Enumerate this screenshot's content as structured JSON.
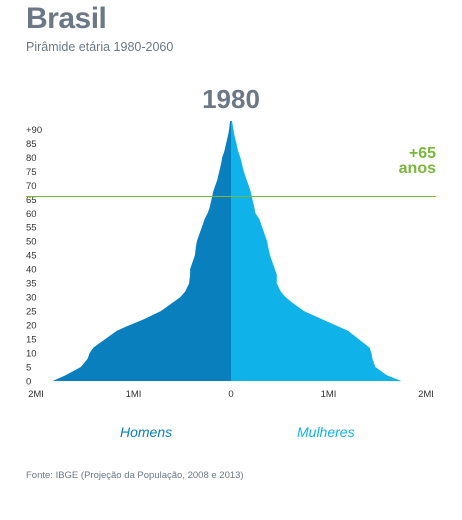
{
  "header": {
    "title": "Brasil",
    "subtitle": "Pirâmide etária 1980-2060"
  },
  "chart_data": {
    "type": "area",
    "title": "1980",
    "orientation": "horizontal-pyramid",
    "y_tick_labels": [
      "+90",
      "85",
      "80",
      "75",
      "70",
      "65",
      "60",
      "55",
      "50",
      "45",
      "40",
      "35",
      "30",
      "25",
      "20",
      "15",
      "10",
      "5",
      "0"
    ],
    "x_tick_labels": [
      "2MI",
      "1MI",
      "0",
      "1MI",
      "2MI"
    ],
    "xlim": [
      -2000000,
      2000000
    ],
    "age_range": [
      0,
      95
    ],
    "age": [
      0,
      2,
      5,
      8,
      10,
      12,
      15,
      18,
      20,
      22,
      25,
      28,
      30,
      32,
      35,
      38,
      40,
      42,
      45,
      48,
      50,
      52,
      55,
      58,
      60,
      62,
      65,
      68,
      70,
      72,
      75,
      78,
      80,
      82,
      85,
      88,
      90,
      93
    ],
    "series": [
      {
        "name": "Homens",
        "color": "#0a7fbe",
        "values": [
          1830000,
          1700000,
          1540000,
          1470000,
          1450000,
          1410000,
          1290000,
          1170000,
          1040000,
          900000,
          720000,
          600000,
          520000,
          470000,
          430000,
          420000,
          420000,
          400000,
          370000,
          360000,
          350000,
          330000,
          300000,
          270000,
          240000,
          220000,
          200000,
          180000,
          160000,
          140000,
          120000,
          100000,
          90000,
          70000,
          50000,
          30000,
          20000,
          10000
        ]
      },
      {
        "name": "Mulheres",
        "color": "#10b2ea",
        "values": [
          1750000,
          1600000,
          1480000,
          1450000,
          1440000,
          1420000,
          1310000,
          1200000,
          1070000,
          940000,
          750000,
          630000,
          560000,
          510000,
          470000,
          470000,
          450000,
          430000,
          400000,
          380000,
          370000,
          350000,
          320000,
          290000,
          250000,
          240000,
          220000,
          200000,
          180000,
          160000,
          130000,
          110000,
          95000,
          75000,
          55000,
          35000,
          25000,
          10000
        ]
      }
    ],
    "reference_line": {
      "age": 66,
      "label_line1": "+65",
      "label_line2": "anos",
      "color": "#7ab83c"
    },
    "legend": {
      "placement": "bottom",
      "entries": [
        "Homens",
        "Mulheres"
      ]
    },
    "grid": false
  },
  "footer": {
    "source": "Fonte: IBGE (Projeção da População, 2008 e 2013)"
  }
}
